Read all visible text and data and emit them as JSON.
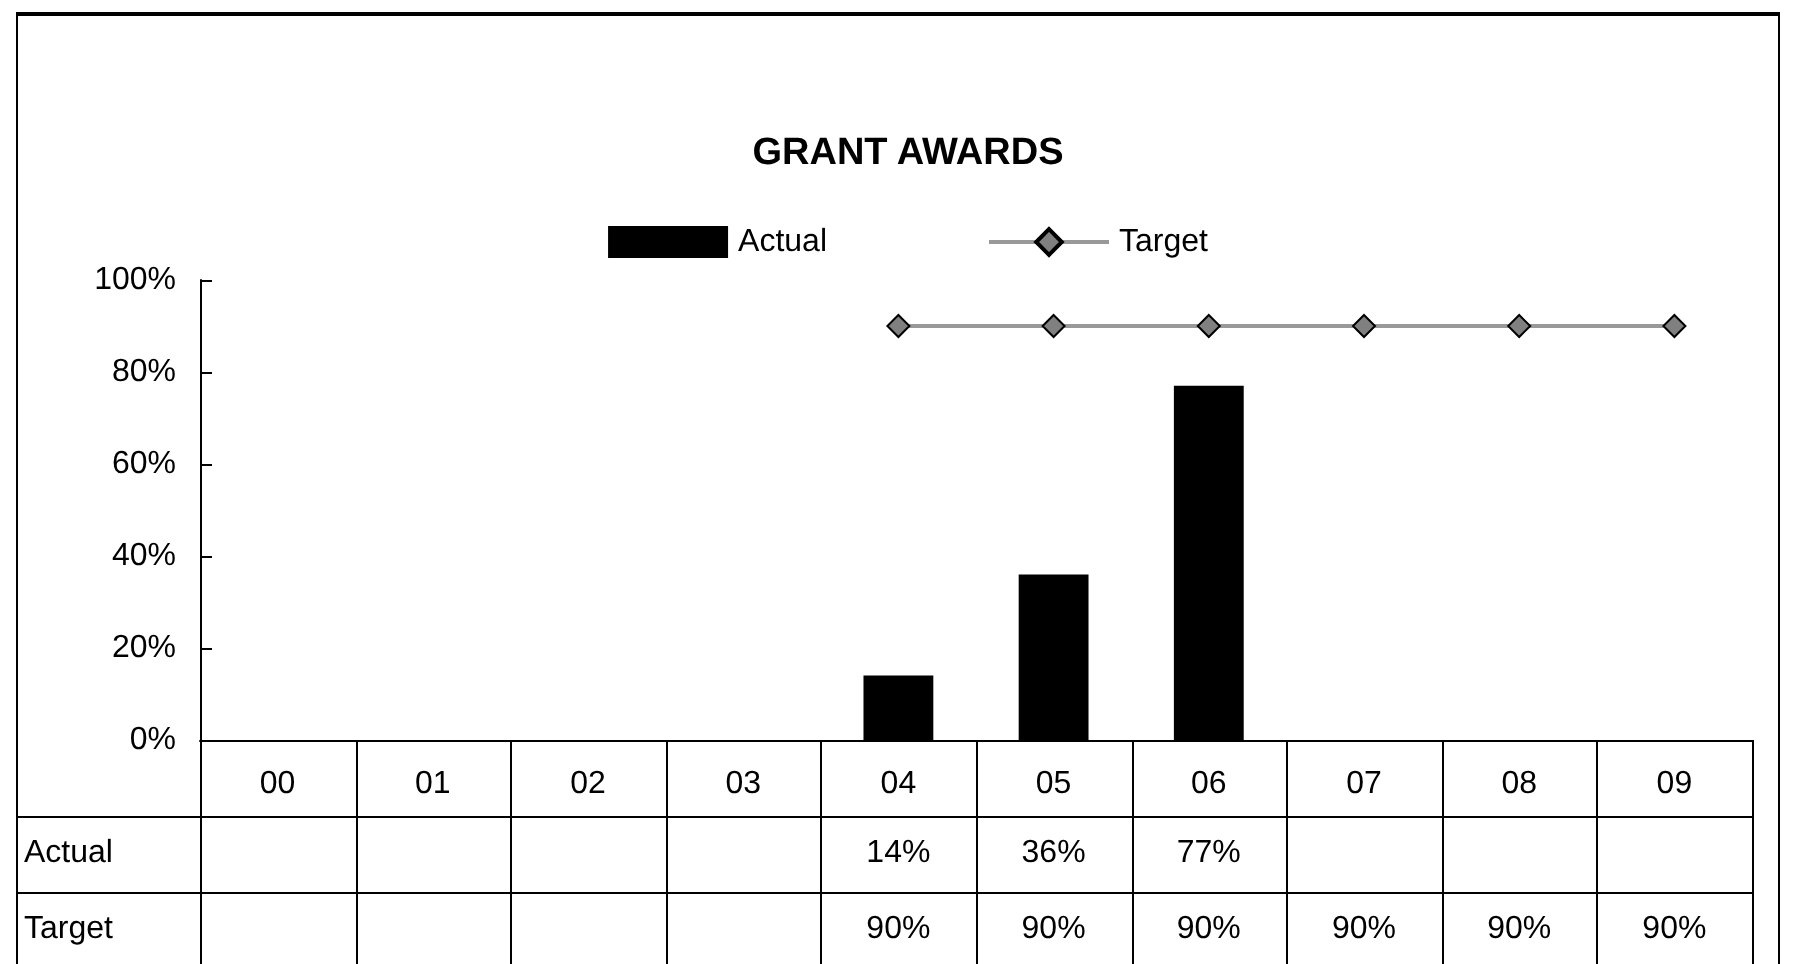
{
  "chart_data": {
    "type": "bar",
    "title": "GRANT AWARDS",
    "categories": [
      "00",
      "01",
      "02",
      "03",
      "04",
      "05",
      "06",
      "07",
      "08",
      "09"
    ],
    "series": [
      {
        "name": "Actual",
        "color": "#000000",
        "values": [
          null,
          null,
          null,
          null,
          14,
          36,
          77,
          null,
          null,
          null
        ],
        "value_labels": [
          null,
          null,
          null,
          null,
          "14%",
          "36%",
          "77%",
          null,
          null,
          null
        ]
      },
      {
        "name": "Target",
        "type": "line",
        "color": "#999999",
        "marker": "diamond",
        "values": [
          null,
          null,
          null,
          null,
          90,
          90,
          90,
          90,
          90,
          90
        ],
        "value_labels": [
          null,
          null,
          null,
          null,
          "90%",
          "90%",
          "90%",
          "90%",
          "90%",
          "90%"
        ]
      }
    ],
    "ylim": [
      0,
      100
    ],
    "yticks": [
      {
        "value": 0,
        "label": "0%"
      },
      {
        "value": 20,
        "label": "20%"
      },
      {
        "value": 40,
        "label": "40%"
      },
      {
        "value": 60,
        "label": "60%"
      },
      {
        "value": 80,
        "label": "80%"
      },
      {
        "value": 100,
        "label": "100%"
      }
    ],
    "grid": false,
    "legend": "top"
  }
}
